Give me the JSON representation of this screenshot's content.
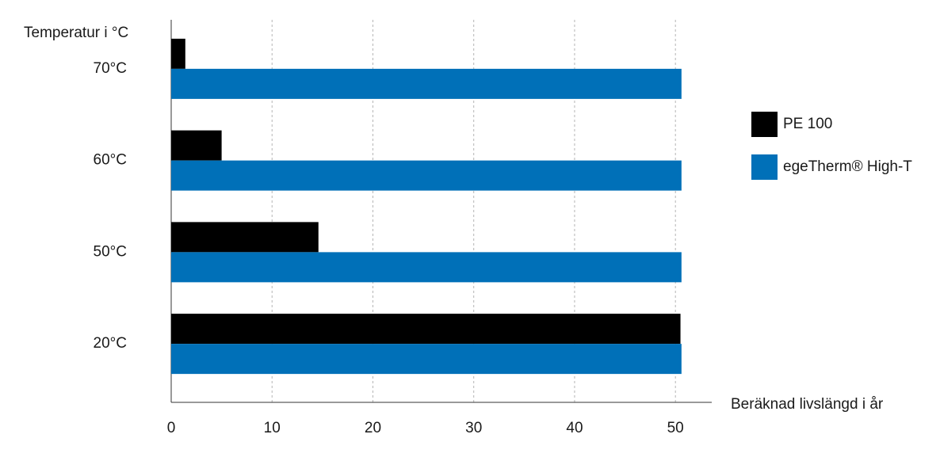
{
  "chart_data": {
    "type": "barh",
    "y_label": "Temperatur i °C",
    "x_label": "Beräknad livslängd i år",
    "categories": [
      "70°C",
      "60°C",
      "50°C",
      "20°C"
    ],
    "series": [
      {
        "name": "PE 100",
        "color": "#000000",
        "values": [
          1.4,
          5.0,
          14.6,
          50.5
        ]
      },
      {
        "name": "egeTherm® High-T",
        "color": "#0070b8",
        "values": [
          50.6,
          50.6,
          50.6,
          50.6
        ]
      }
    ],
    "xlim": [
      0,
      53.6
    ],
    "xticks": [
      0,
      10,
      20,
      30,
      40,
      50
    ],
    "grid": true,
    "legend": "right"
  }
}
